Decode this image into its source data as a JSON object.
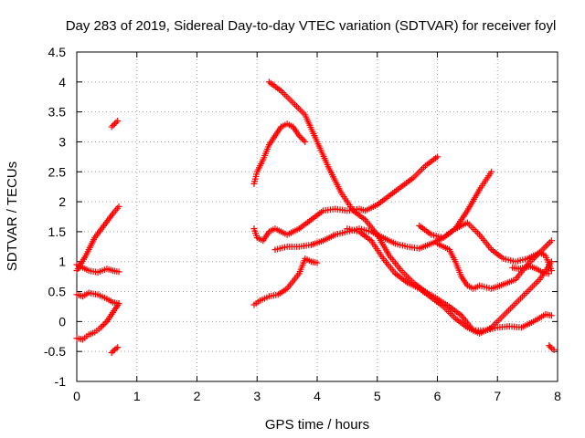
{
  "chart_data": {
    "type": "scatter",
    "title": "Day 283 of 2019, Sidereal Day-to-day VTEC variation (SDTVAR) for receiver foyl",
    "xlabel": "GPS time / hours",
    "ylabel": "SDTVAR / TECUs",
    "xlim": [
      0,
      8
    ],
    "ylim": [
      -1,
      4.5
    ],
    "xticks": [
      "0",
      "1",
      "2",
      "3",
      "4",
      "5",
      "6",
      "7",
      "8"
    ],
    "yticks": [
      "-1",
      "-0.5",
      "0",
      "0.5",
      "1",
      "1.5",
      "2",
      "2.5",
      "3",
      "3.5",
      "4",
      "4.5"
    ],
    "grid": true,
    "marker": "plus",
    "color": "#ff0000",
    "series": [
      {
        "x": [
          0.0,
          0.15,
          0.3,
          0.45,
          0.6,
          0.7
        ],
        "y": [
          0.85,
          1.1,
          1.4,
          1.6,
          1.8,
          1.92
        ]
      },
      {
        "x": [
          0.0,
          0.1,
          0.2,
          0.35,
          0.5,
          0.6,
          0.7
        ],
        "y": [
          0.95,
          0.9,
          0.85,
          0.82,
          0.88,
          0.85,
          0.83
        ]
      },
      {
        "x": [
          0.0,
          0.1,
          0.2,
          0.35,
          0.5,
          0.6,
          0.7
        ],
        "y": [
          0.45,
          0.42,
          0.48,
          0.45,
          0.38,
          0.32,
          0.3
        ]
      },
      {
        "x": [
          0.0,
          0.1,
          0.2,
          0.3,
          0.4,
          0.5,
          0.6,
          0.7
        ],
        "y": [
          -0.28,
          -0.3,
          -0.22,
          -0.18,
          -0.1,
          0.0,
          0.15,
          0.3
        ]
      },
      {
        "x": [
          0.58,
          0.63,
          0.68
        ],
        "y": [
          3.25,
          3.3,
          3.35
        ]
      },
      {
        "x": [
          0.58,
          0.63,
          0.68
        ],
        "y": [
          -0.52,
          -0.47,
          -0.43
        ]
      },
      {
        "x": [
          2.95,
          3.0,
          3.1,
          3.2,
          3.3,
          3.4,
          3.5,
          3.6,
          3.7,
          3.8
        ],
        "y": [
          2.3,
          2.5,
          2.7,
          2.95,
          3.1,
          3.25,
          3.3,
          3.25,
          3.1,
          3.0
        ]
      },
      {
        "x": [
          3.2,
          3.4,
          3.6,
          3.8,
          4.0,
          4.2,
          4.4,
          4.6,
          4.8,
          5.0,
          5.2,
          5.4,
          5.6,
          5.8,
          6.0,
          6.2,
          6.4,
          6.6,
          6.8,
          7.0,
          7.2,
          7.4,
          7.6,
          7.8,
          7.9
        ],
        "y": [
          4.0,
          3.85,
          3.65,
          3.45,
          3.0,
          2.55,
          2.15,
          1.85,
          1.7,
          1.45,
          1.1,
          0.85,
          0.65,
          0.5,
          0.38,
          0.25,
          0.1,
          -0.15,
          -0.15,
          -0.1,
          -0.08,
          -0.1,
          0.0,
          0.12,
          0.1
        ]
      },
      {
        "x": [
          2.95,
          3.0,
          3.1,
          3.2,
          3.3,
          3.5,
          3.7,
          3.9,
          4.1,
          4.3,
          4.5,
          4.7,
          4.8,
          5.0,
          5.2,
          5.4,
          5.6,
          5.8,
          6.0
        ],
        "y": [
          1.55,
          1.4,
          1.35,
          1.5,
          1.55,
          1.45,
          1.55,
          1.7,
          1.85,
          1.88,
          1.85,
          1.88,
          1.85,
          1.95,
          2.1,
          2.25,
          2.4,
          2.6,
          2.75
        ]
      },
      {
        "x": [
          3.3,
          3.5,
          3.7,
          3.9,
          4.1,
          4.3,
          4.5,
          4.7,
          4.9,
          5.1,
          5.3,
          5.5,
          5.7,
          5.9,
          6.1,
          6.3,
          6.4,
          6.5,
          6.7,
          6.9
        ],
        "y": [
          1.2,
          1.25,
          1.25,
          1.28,
          1.35,
          1.45,
          1.5,
          1.55,
          1.5,
          1.4,
          1.3,
          1.25,
          1.22,
          1.3,
          1.4,
          1.55,
          1.7,
          1.85,
          2.2,
          2.5
        ]
      },
      {
        "x": [
          2.95,
          3.05,
          3.2,
          3.35,
          3.5,
          3.7,
          3.8,
          3.9,
          4.0
        ],
        "y": [
          0.28,
          0.35,
          0.42,
          0.45,
          0.55,
          0.8,
          1.05,
          1.0,
          0.98
        ]
      },
      {
        "x": [
          4.5,
          4.7,
          4.9,
          5.1,
          5.3,
          5.5,
          5.7,
          5.9,
          6.1,
          6.3,
          6.5,
          6.7,
          6.9,
          7.1,
          7.3,
          7.5,
          7.7,
          7.9
        ],
        "y": [
          1.55,
          1.5,
          1.35,
          1.05,
          0.8,
          0.65,
          0.55,
          0.4,
          0.25,
          0.05,
          -0.1,
          -0.2,
          -0.1,
          0.1,
          0.3,
          0.5,
          0.7,
          1.0
        ]
      },
      {
        "x": [
          5.7,
          5.9,
          6.1,
          6.3,
          6.5,
          6.7,
          6.9,
          7.1,
          7.3,
          7.5,
          7.7,
          7.9
        ],
        "y": [
          1.6,
          1.45,
          1.4,
          1.55,
          1.65,
          1.45,
          1.2,
          1.05,
          1.0,
          1.05,
          1.15,
          1.35
        ]
      },
      {
        "x": [
          6.0,
          6.1,
          6.2,
          6.3,
          6.4,
          6.5,
          6.6,
          6.7,
          6.9,
          7.1,
          7.3,
          7.5,
          7.7,
          7.8,
          7.9
        ],
        "y": [
          1.3,
          1.25,
          1.2,
          1.0,
          0.75,
          0.6,
          0.55,
          0.6,
          0.55,
          0.62,
          0.7,
          0.95,
          1.15,
          1.1,
          0.85
        ]
      },
      {
        "x": [
          7.25,
          7.35,
          7.45,
          7.55,
          7.65,
          7.75,
          7.85
        ],
        "y": [
          0.9,
          0.88,
          0.9,
          0.92,
          0.88,
          0.82,
          0.8
        ]
      },
      {
        "x": [
          7.86,
          7.9,
          7.94
        ],
        "y": [
          -0.4,
          -0.45,
          -0.47
        ]
      }
    ]
  }
}
